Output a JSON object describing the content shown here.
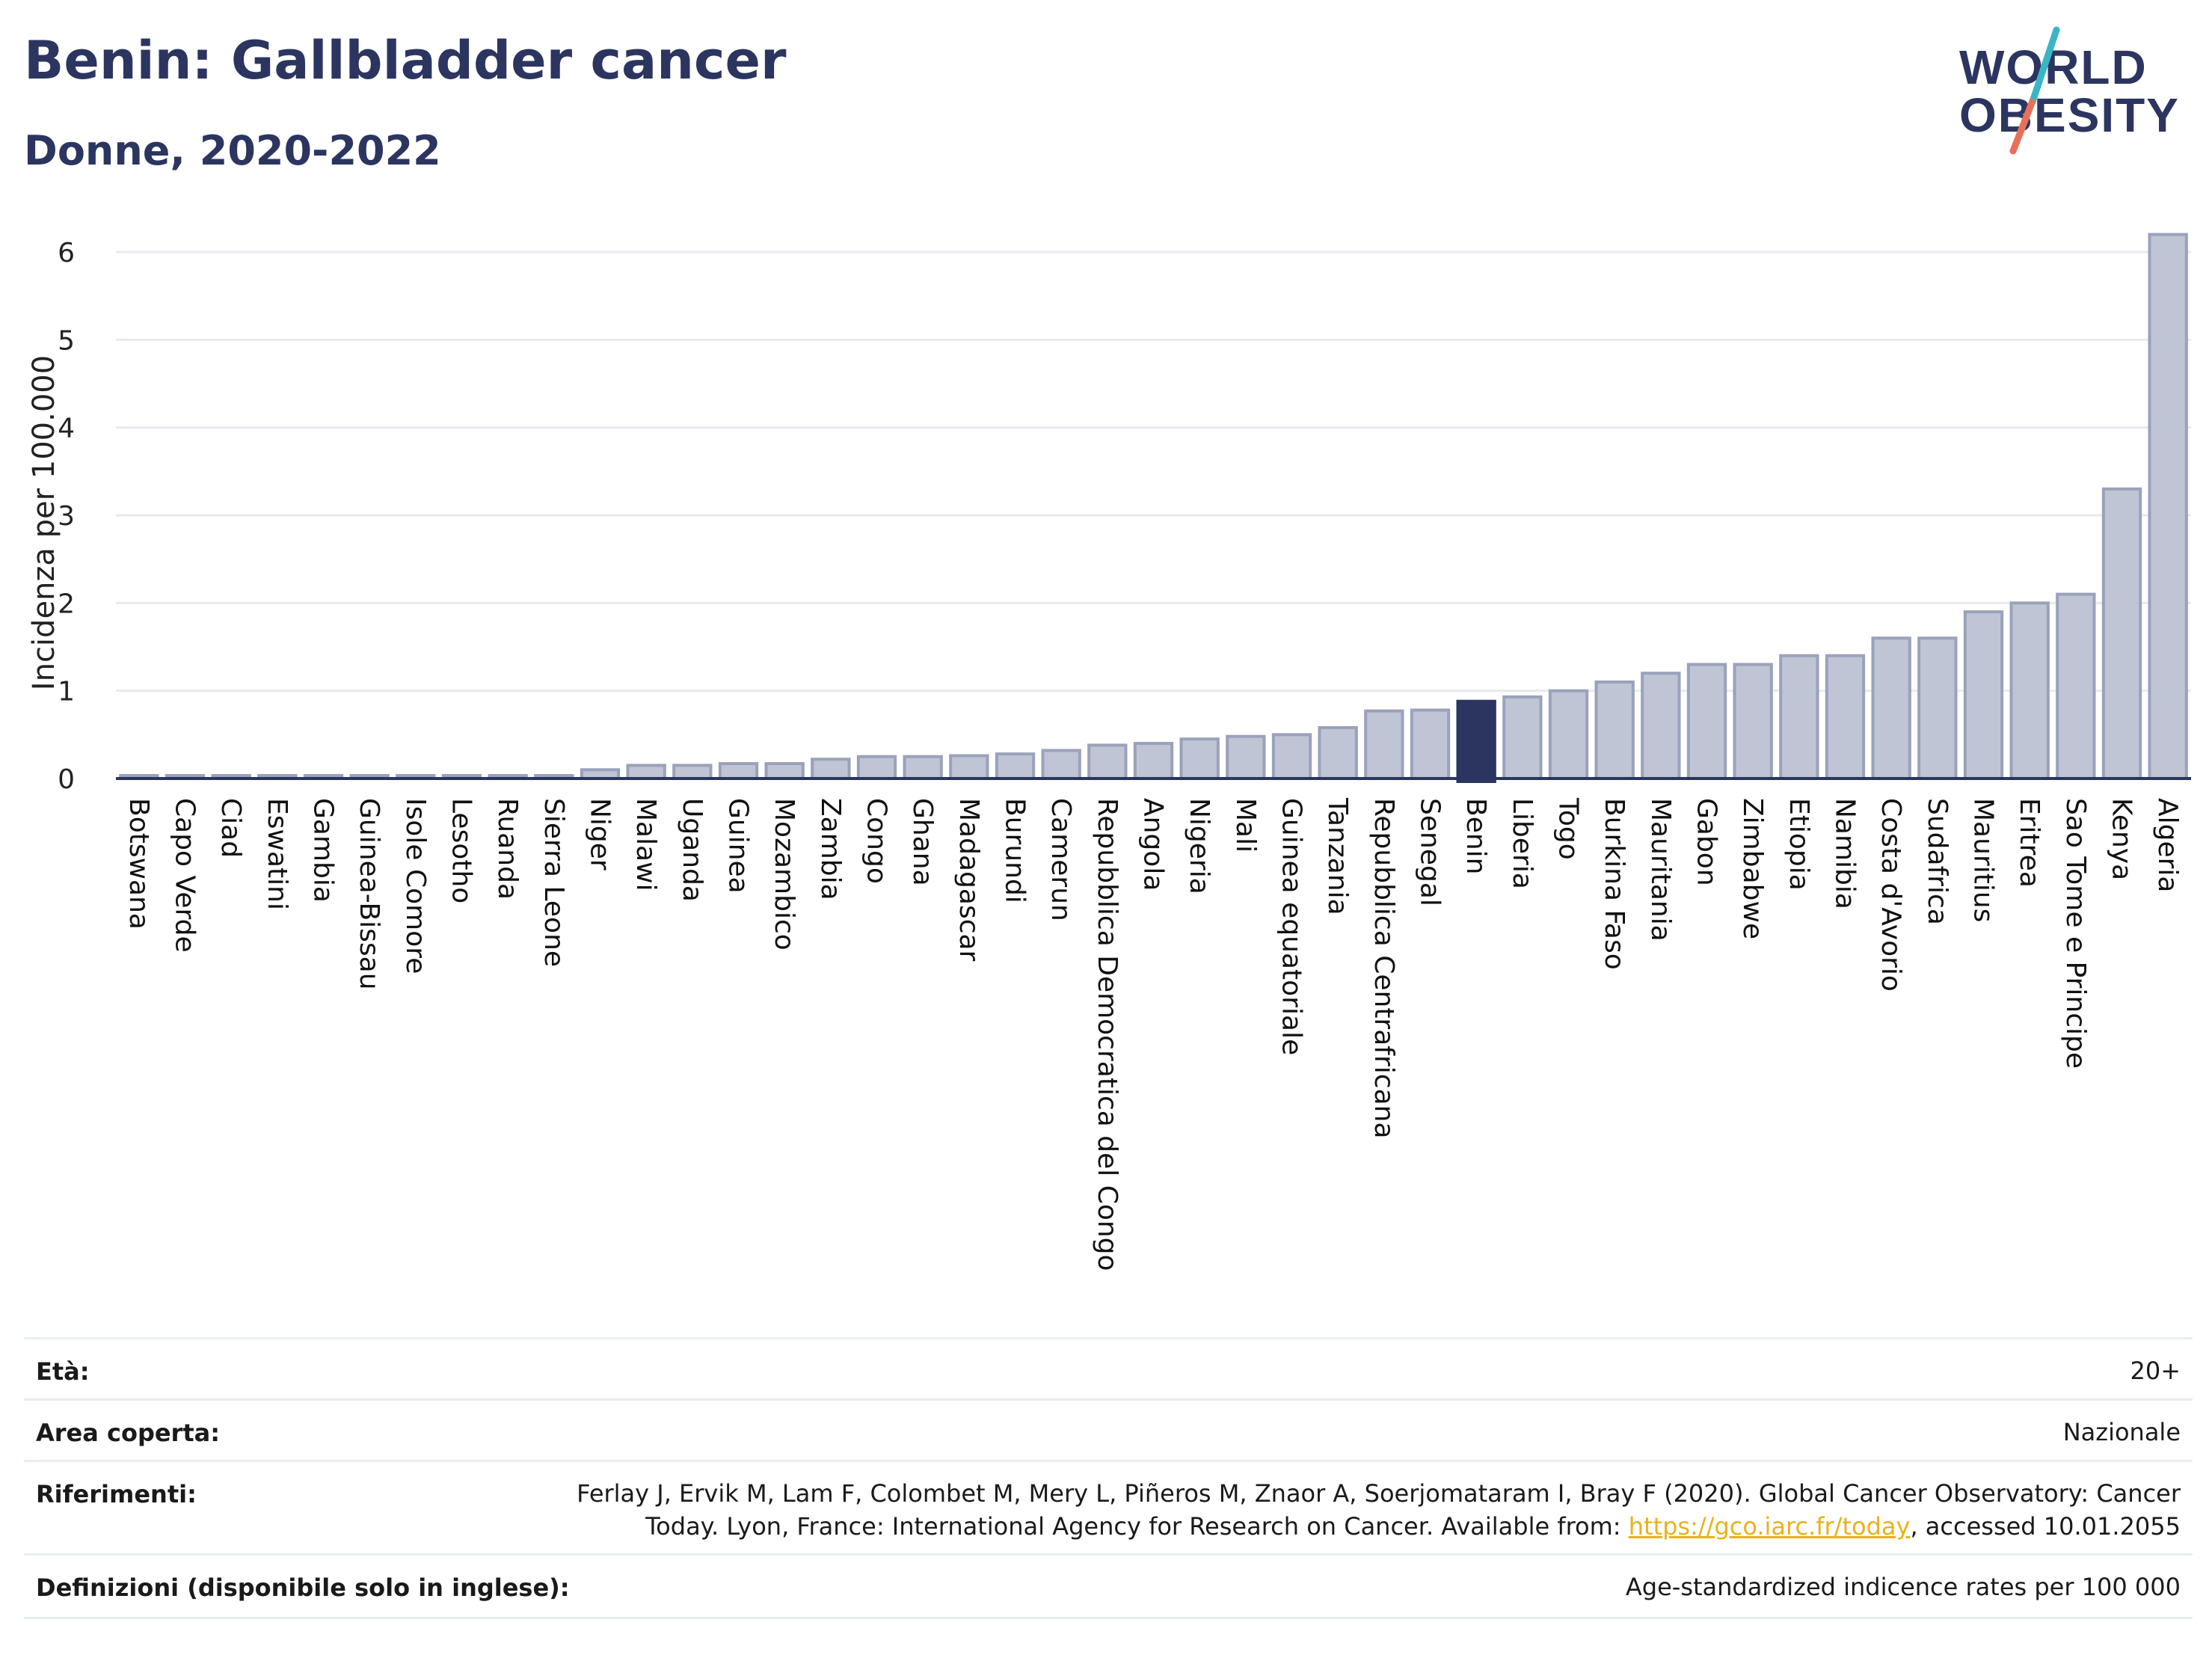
{
  "header": {
    "title": "Benin: Gallbladder cancer",
    "subtitle": "Donne, 2020-2022"
  },
  "logo": {
    "line1": "WORLD",
    "line2": "OBESITY",
    "colors": {
      "text": "#2b3560",
      "slash_top": "#3ab5c6",
      "slash_bottom": "#e8705a"
    }
  },
  "chart_data": {
    "type": "bar",
    "ylabel": "Incidenza per 100.000",
    "ylim": [
      0,
      6.4
    ],
    "yticks": [
      0,
      1,
      2,
      3,
      4,
      5,
      6
    ],
    "grid": true,
    "highlight": "Benin",
    "colors": {
      "bar": "#bfc5d4",
      "bar_edge": "#9aa2bb",
      "highlight": "#2b3560"
    },
    "categories": [
      "Botswana",
      "Capo Verde",
      "Ciad",
      "Eswatini",
      "Gambia",
      "Guinea-Bissau",
      "Isole Comore",
      "Lesotho",
      "Ruanda",
      "Sierra Leone",
      "Niger",
      "Malawi",
      "Uganda",
      "Guinea",
      "Mozambico",
      "Zambia",
      "Congo",
      "Ghana",
      "Madagascar",
      "Burundi",
      "Camerun",
      "Repubblica Democratica del Congo",
      "Angola",
      "Nigeria",
      "Mali",
      "Guinea equatoriale",
      "Tanzania",
      "Repubblica Centrafricana",
      "Senegal",
      "Benin",
      "Liberia",
      "Togo",
      "Burkina Faso",
      "Mauritania",
      "Gabon",
      "Zimbabwe",
      "Etiopia",
      "Namibia",
      "Costa d'Avorio",
      "Sudafrica",
      "Mauritius",
      "Eritrea",
      "Sao Tome e Principe",
      "Kenya",
      "Algeria"
    ],
    "values": [
      0.02,
      0.02,
      0.02,
      0.02,
      0.02,
      0.02,
      0.02,
      0.02,
      0.02,
      0.02,
      0.1,
      0.15,
      0.15,
      0.17,
      0.17,
      0.22,
      0.25,
      0.25,
      0.26,
      0.28,
      0.32,
      0.38,
      0.4,
      0.45,
      0.48,
      0.5,
      0.58,
      0.77,
      0.78,
      0.88,
      0.93,
      1.0,
      1.1,
      1.2,
      1.3,
      1.3,
      1.4,
      1.4,
      1.6,
      1.6,
      1.9,
      2.0,
      2.1,
      3.3,
      6.2
    ]
  },
  "info_table": [
    {
      "key": "Età:",
      "value": "20+"
    },
    {
      "key": "Area coperta:",
      "value": "Nazionale"
    },
    {
      "key": "Riferimenti:",
      "value_line1": "Ferlay J, Ervik M, Lam F, Colombet M, Mery L, Piñeros M, Znaor A, Soerjomataram I, Bray F (2020). Global Cancer Observatory: Cancer",
      "value_line2_pre": "Today. Lyon, France: International Agency for Research on Cancer. Available from: ",
      "link": "https://gco.iarc.fr/today",
      "value_line2_post": ", accessed 10.01.2055"
    },
    {
      "key": "Definizioni (disponibile solo in inglese):",
      "value": "Age-standardized indicence rates per 100 000"
    }
  ]
}
